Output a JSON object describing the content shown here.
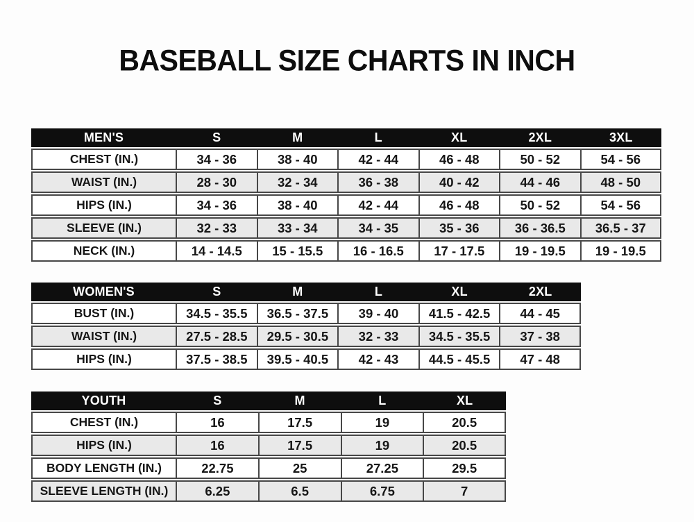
{
  "title": "BASEBALL SIZE CHARTS IN INCH",
  "chart_data": [
    {
      "type": "table",
      "id": "mens",
      "header": [
        "MEN'S",
        "S",
        "M",
        "L",
        "XL",
        "2XL",
        "3XL"
      ],
      "rows": [
        [
          "CHEST (IN.)",
          "34 - 36",
          "38 - 40",
          "42 - 44",
          "46 - 48",
          "50 - 52",
          "54 - 56"
        ],
        [
          "WAIST (IN.)",
          "28 - 30",
          "32 - 34",
          "36 - 38",
          "40 - 42",
          "44 - 46",
          "48 - 50"
        ],
        [
          "HIPS (IN.)",
          "34 - 36",
          "38 - 40",
          "42 - 44",
          "46 - 48",
          "50 - 52",
          "54 - 56"
        ],
        [
          "SLEEVE (IN.)",
          "32 - 33",
          "33 - 34",
          "34 - 35",
          "35 - 36",
          "36 - 36.5",
          "36.5 - 37"
        ],
        [
          "NECK (IN.)",
          "14 - 14.5",
          "15 - 15.5",
          "16 - 16.5",
          "17 - 17.5",
          "19 - 19.5",
          "19 - 19.5"
        ]
      ]
    },
    {
      "type": "table",
      "id": "womens",
      "header": [
        "WOMEN'S",
        "S",
        "M",
        "L",
        "XL",
        "2XL"
      ],
      "rows": [
        [
          "BUST (IN.)",
          "34.5 - 35.5",
          "36.5 - 37.5",
          "39 - 40",
          "41.5 - 42.5",
          "44 - 45"
        ],
        [
          "WAIST (IN.)",
          "27.5 - 28.5",
          "29.5 - 30.5",
          "32 - 33",
          "34.5 - 35.5",
          "37 - 38"
        ],
        [
          "HIPS (IN.)",
          "37.5 - 38.5",
          "39.5 - 40.5",
          "42 - 43",
          "44.5 - 45.5",
          "47 - 48"
        ]
      ]
    },
    {
      "type": "table",
      "id": "youth",
      "header": [
        "YOUTH",
        "S",
        "M",
        "L",
        "XL"
      ],
      "rows": [
        [
          "CHEST (IN.)",
          "16",
          "17.5",
          "19",
          "20.5"
        ],
        [
          "HIPS (IN.)",
          "16",
          "17.5",
          "19",
          "20.5"
        ],
        [
          "BODY LENGTH (IN.)",
          "22.75",
          "25",
          "27.25",
          "29.5"
        ],
        [
          "SLEEVE LENGTH (IN.)",
          "6.25",
          "6.5",
          "6.75",
          "7"
        ]
      ]
    }
  ],
  "colors": {
    "header_bg": "#0e0e0e",
    "header_text": "#ffffff",
    "row_stripe": "#e9e9e9",
    "border": "#474747",
    "text": "#161616",
    "background": "#fdfdfd"
  }
}
